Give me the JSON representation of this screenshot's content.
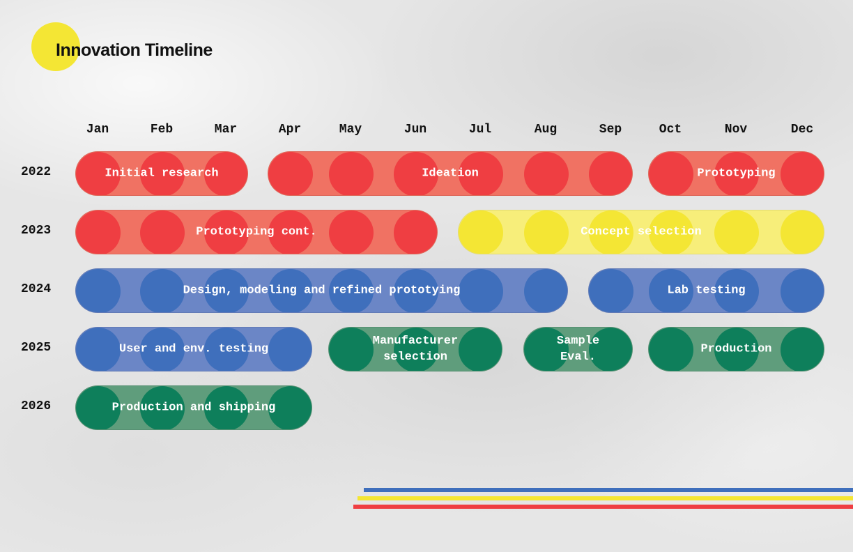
{
  "title": "Innovation Timeline",
  "colors": {
    "red": "#ef3e42",
    "yellow": "#f4e634",
    "blue": "#3f6fbc",
    "green": "#0e7f5b"
  },
  "chart_data": {
    "type": "gantt",
    "months": [
      "Jan",
      "Feb",
      "Mar",
      "Apr",
      "May",
      "Jun",
      "Jul",
      "Aug",
      "Sep",
      "Oct",
      "Nov",
      "Dec"
    ],
    "years": [
      "2022",
      "2023",
      "2024",
      "2025",
      "2026"
    ],
    "tasks": [
      {
        "label": "Initial research",
        "year": "2022",
        "start": "Jan",
        "end": "Mar",
        "color": "red"
      },
      {
        "label": "Ideation",
        "year": "2022",
        "start": "Apr",
        "end": "Sep",
        "color": "red"
      },
      {
        "label": "Prototyping",
        "year": "2022",
        "start": "Oct",
        "end": "Dec",
        "color": "red"
      },
      {
        "label": "Prototyping cont.",
        "year": "2023",
        "start": "Jan",
        "end": "Jun",
        "color": "red"
      },
      {
        "label": "Concept selection",
        "year": "2023",
        "start": "Jul",
        "end": "Dec",
        "color": "yellow"
      },
      {
        "label": "Design, modeling and refined prototying",
        "year": "2024",
        "start": "Jan",
        "end": "Aug",
        "color": "blue"
      },
      {
        "label": "Lab testing",
        "year": "2024",
        "start": "Sep",
        "end": "Dec",
        "color": "blue"
      },
      {
        "label": "User and env. testing",
        "year": "2025",
        "start": "Jan",
        "end": "Apr",
        "color": "blue"
      },
      {
        "label": "Manufacturer selection",
        "year": "2025",
        "start": "May",
        "end": "Jul",
        "color": "green"
      },
      {
        "label": "Sample Eval.",
        "year": "2025",
        "start": "Aug",
        "end": "Sep",
        "color": "green"
      },
      {
        "label": "Production",
        "year": "2025",
        "start": "Oct",
        "end": "Dec",
        "color": "green"
      },
      {
        "label": "Production and shipping",
        "year": "2026",
        "start": "Jan",
        "end": "Apr",
        "color": "green"
      }
    ]
  }
}
